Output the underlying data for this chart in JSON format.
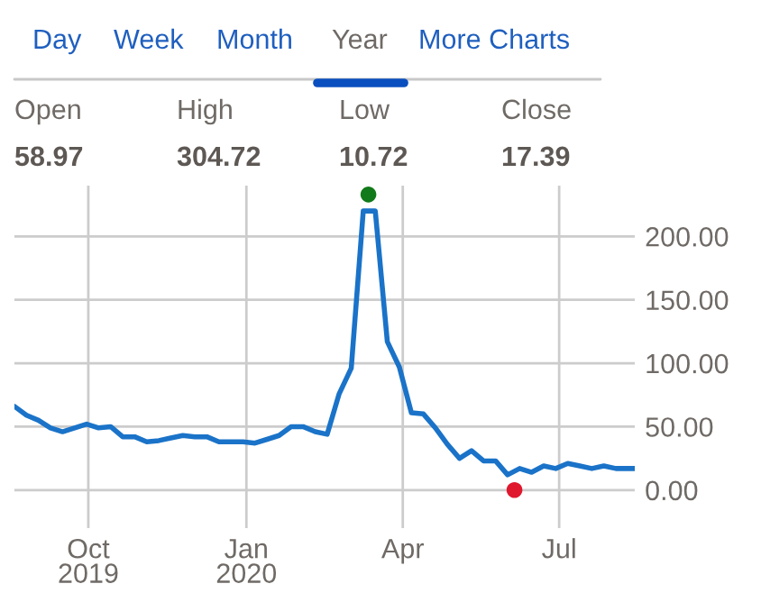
{
  "chart_data": {
    "type": "line",
    "annotations": [
      "Day",
      "Week",
      "Month",
      "Year",
      "More Charts",
      "Open",
      "High",
      "Low",
      "Close",
      "58.97",
      "304.72",
      "10.72",
      "17.39"
    ],
    "x": [
      "2019-08-19",
      "2019-08-26",
      "2019-09-02",
      "2019-09-09",
      "2019-09-16",
      "2019-09-23",
      "2019-09-30",
      "2019-10-07",
      "2019-10-14",
      "2019-10-21",
      "2019-10-28",
      "2019-11-04",
      "2019-11-11",
      "2019-11-18",
      "2019-11-25",
      "2019-12-02",
      "2019-12-09",
      "2019-12-16",
      "2019-12-23",
      "2019-12-30",
      "2020-01-06",
      "2020-01-13",
      "2020-01-20",
      "2020-01-27",
      "2020-02-03",
      "2020-02-10",
      "2020-02-17",
      "2020-02-24",
      "2020-03-02",
      "2020-03-09",
      "2020-03-16",
      "2020-03-23",
      "2020-03-30",
      "2020-04-06",
      "2020-04-13",
      "2020-04-20",
      "2020-04-27",
      "2020-05-04",
      "2020-05-11",
      "2020-05-18",
      "2020-05-25",
      "2020-06-01",
      "2020-06-08",
      "2020-06-15",
      "2020-06-22",
      "2020-06-29",
      "2020-07-06",
      "2020-07-13",
      "2020-07-20",
      "2020-07-27",
      "2020-08-03",
      "2020-08-14"
    ],
    "series": [
      {
        "color": "#1a73c8",
        "marker": "none",
        "values": [
          66,
          59,
          55,
          49,
          46,
          49,
          52,
          49,
          50,
          42,
          42,
          38,
          39,
          41,
          43,
          42,
          42,
          38,
          38,
          38,
          37,
          40,
          43,
          50,
          50,
          46,
          44,
          76,
          96,
          220,
          220,
          117,
          97,
          61,
          60,
          49,
          36,
          25,
          31,
          23,
          23,
          12,
          17,
          14,
          19,
          17,
          21,
          19,
          17,
          19,
          17,
          17
        ]
      },
      {
        "type": "scatter",
        "marker": "circle",
        "x": [
          "2020-03-12",
          "2020-06-05"
        ],
        "values": [
          233,
          0
        ],
        "colors": [
          "#117a1a",
          "#e0182d"
        ]
      }
    ],
    "xlim": [
      "2019-08-19",
      "2020-08-14"
    ],
    "xticks": [
      {
        "value": "2019-10-01",
        "label": "Oct\n2019"
      },
      {
        "value": "2020-01-01",
        "label": "Jan\n2020"
      },
      {
        "value": "2020-04-01",
        "label": "Apr"
      },
      {
        "value": "2020-07-01",
        "label": "Jul"
      }
    ],
    "ylim": [
      -30,
      240
    ],
    "yticks": [
      {
        "value": 0,
        "label": "0.00"
      },
      {
        "value": 50,
        "label": "50.00"
      },
      {
        "value": 100,
        "label": "100.00"
      },
      {
        "value": 150,
        "label": "150.00"
      },
      {
        "value": 200,
        "label": "200.00"
      }
    ],
    "grid": true,
    "line_style": "solid",
    "legend": false
  }
}
